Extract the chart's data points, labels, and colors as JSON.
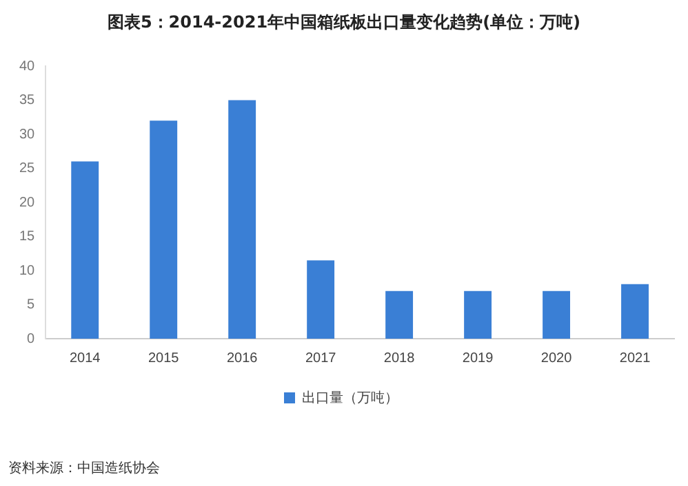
{
  "chart_data": {
    "type": "bar",
    "title": "图表5：2014-2021年中国箱纸板出口量变化趋势(单位：万吨)",
    "categories": [
      "2014",
      "2015",
      "2016",
      "2017",
      "2018",
      "2019",
      "2020",
      "2021"
    ],
    "series": [
      {
        "name": "出口量（万吨）",
        "color": "#3a7fd5",
        "values": [
          26,
          32,
          35,
          11.5,
          7,
          7,
          7,
          8
        ]
      }
    ],
    "ylim": [
      0,
      40
    ],
    "yticks": [
      0,
      5,
      10,
      15,
      20,
      25,
      30,
      35,
      40
    ],
    "grid": false,
    "legend": "bottom",
    "annotations": [
      "资料来源：中国造纸协会"
    ]
  }
}
